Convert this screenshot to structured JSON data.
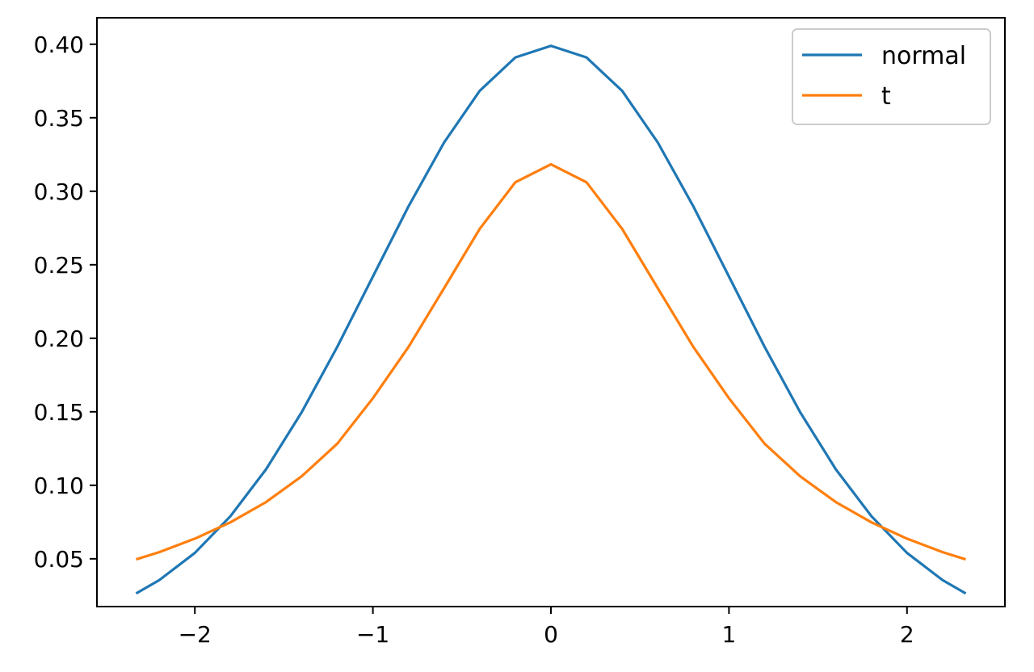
{
  "chart_data": {
    "type": "line",
    "title": "",
    "xlabel": "",
    "ylabel": "",
    "xlim": [
      -2.55,
      2.55
    ],
    "ylim": [
      0.0175,
      0.418
    ],
    "x_range": [
      -2.33,
      2.33
    ],
    "grid": false,
    "legend_position": "top-right",
    "x_ticks": [
      {
        "value": -2,
        "label": "−2"
      },
      {
        "value": -1,
        "label": "−1"
      },
      {
        "value": 0,
        "label": "0"
      },
      {
        "value": 1,
        "label": "1"
      },
      {
        "value": 2,
        "label": "2"
      }
    ],
    "y_ticks": [
      {
        "value": 0.05,
        "label": "0.05"
      },
      {
        "value": 0.1,
        "label": "0.10"
      },
      {
        "value": 0.15,
        "label": "0.15"
      },
      {
        "value": 0.2,
        "label": "0.20"
      },
      {
        "value": 0.25,
        "label": "0.25"
      },
      {
        "value": 0.3,
        "label": "0.30"
      },
      {
        "value": 0.35,
        "label": "0.35"
      },
      {
        "value": 0.4,
        "label": "0.40"
      }
    ],
    "series": [
      {
        "name": "normal",
        "color": "#1f77b4",
        "points": [
          [
            -2.33,
            0.0264
          ],
          [
            -2.2,
            0.0355
          ],
          [
            -2.0,
            0.054
          ],
          [
            -1.8,
            0.079
          ],
          [
            -1.6,
            0.1109
          ],
          [
            -1.4,
            0.1497
          ],
          [
            -1.2,
            0.1942
          ],
          [
            -1.0,
            0.242
          ],
          [
            -0.8,
            0.2897
          ],
          [
            -0.6,
            0.3332
          ],
          [
            -0.4,
            0.3683
          ],
          [
            -0.2,
            0.391
          ],
          [
            0.0,
            0.3989
          ],
          [
            0.2,
            0.391
          ],
          [
            0.4,
            0.3683
          ],
          [
            0.6,
            0.3332
          ],
          [
            0.8,
            0.2897
          ],
          [
            1.0,
            0.242
          ],
          [
            1.2,
            0.1942
          ],
          [
            1.4,
            0.1497
          ],
          [
            1.6,
            0.1109
          ],
          [
            1.8,
            0.079
          ],
          [
            2.0,
            0.054
          ],
          [
            2.2,
            0.0355
          ],
          [
            2.33,
            0.0264
          ]
        ]
      },
      {
        "name": "t",
        "color": "#ff7f0e",
        "points": [
          [
            -2.33,
            0.0496
          ],
          [
            -2.2,
            0.0545
          ],
          [
            -2.0,
            0.0637
          ],
          [
            -1.8,
            0.0748
          ],
          [
            -1.6,
            0.0886
          ],
          [
            -1.4,
            0.1061
          ],
          [
            -1.2,
            0.1283
          ],
          [
            -1.0,
            0.1592
          ],
          [
            -0.8,
            0.1941
          ],
          [
            -0.6,
            0.2341
          ],
          [
            -0.4,
            0.2744
          ],
          [
            -0.2,
            0.3061
          ],
          [
            0.0,
            0.3183
          ],
          [
            0.2,
            0.3061
          ],
          [
            0.4,
            0.2744
          ],
          [
            0.6,
            0.2341
          ],
          [
            0.8,
            0.1941
          ],
          [
            1.0,
            0.1592
          ],
          [
            1.2,
            0.1283
          ],
          [
            1.4,
            0.1061
          ],
          [
            1.6,
            0.0886
          ],
          [
            1.8,
            0.0748
          ],
          [
            2.0,
            0.0637
          ],
          [
            2.2,
            0.0545
          ],
          [
            2.33,
            0.0496
          ]
        ]
      }
    ]
  }
}
